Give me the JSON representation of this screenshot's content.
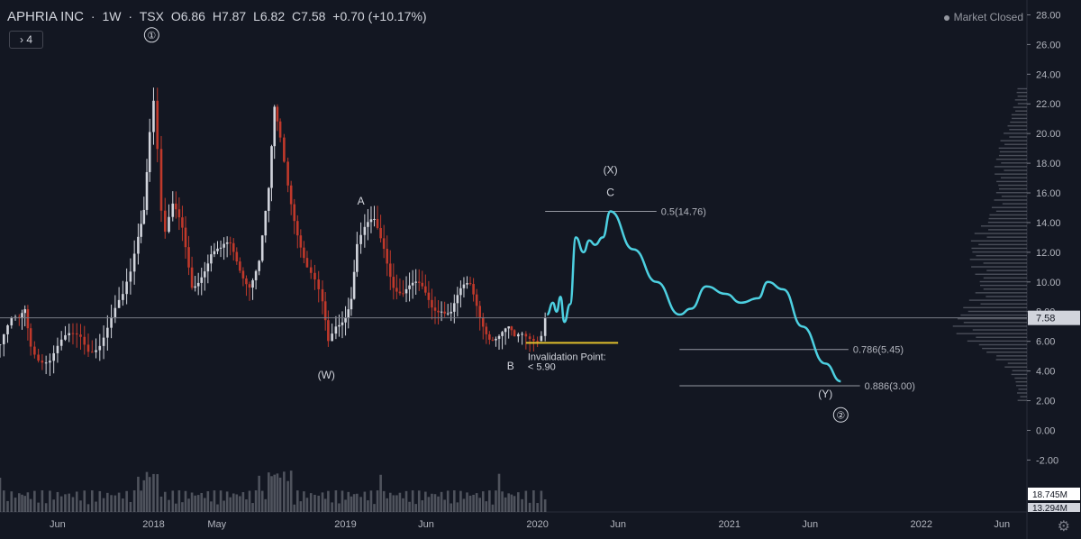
{
  "header": {
    "symbol": "APHRIA INC",
    "interval": "1W",
    "exchange": "TSX",
    "open": "O6.86",
    "high": "H7.87",
    "low": "L6.82",
    "close": "C7.58",
    "change": "+0.70 (+10.17%)",
    "indicators_button": "› 4"
  },
  "market_status": "Market Closed",
  "icons": {
    "settings": "gear-icon",
    "market_dot": "status-dot-icon"
  },
  "colors": {
    "bg": "#131722",
    "up": "#d1d4dc",
    "down": "#c0392b",
    "projection": "#4dd0e1",
    "invalidation": "#e0c02c",
    "level": "#9598a1"
  },
  "chart_data": {
    "type": "candlestick",
    "title": "APHRIA INC · 1W · TSX",
    "y_axis": {
      "ticks": [
        "28.00",
        "26.00",
        "24.00",
        "22.00",
        "20.00",
        "18.00",
        "16.00",
        "14.00",
        "12.00",
        "10.00",
        "8.00",
        "6.00",
        "4.00",
        "2.00",
        "0.00",
        "-2.00"
      ],
      "range": [
        -5.5,
        29
      ]
    },
    "x_axis": {
      "ticks": [
        {
          "label": "Jun",
          "t": 0.5
        },
        {
          "label": "2018",
          "t": 1.0
        },
        {
          "label": "May",
          "t": 1.33
        },
        {
          "label": "2019",
          "t": 2.0
        },
        {
          "label": "Jun",
          "t": 2.42
        },
        {
          "label": "2020",
          "t": 3.0
        },
        {
          "label": "Jun",
          "t": 3.42
        },
        {
          "label": "2021",
          "t": 4.0
        },
        {
          "label": "Jun",
          "t": 4.42
        },
        {
          "label": "2022",
          "t": 5.0
        },
        {
          "label": "Jun",
          "t": 5.42
        }
      ],
      "range": [
        0.2,
        5.55
      ]
    },
    "price_series": [
      {
        "t": 0.2,
        "c": 5.8
      },
      {
        "t": 0.26,
        "c": 6.7
      },
      {
        "t": 0.3,
        "c": 6.8
      },
      {
        "t": 0.33,
        "c": 8.0
      },
      {
        "t": 0.36,
        "c": 6.2
      },
      {
        "t": 0.4,
        "c": 5.6
      },
      {
        "t": 0.46,
        "c": 5.0
      },
      {
        "t": 0.52,
        "c": 5.4
      },
      {
        "t": 0.58,
        "c": 5.8
      },
      {
        "t": 0.62,
        "c": 6.2
      },
      {
        "t": 0.66,
        "c": 5.9
      },
      {
        "t": 0.72,
        "c": 6.5
      },
      {
        "t": 0.78,
        "c": 7.5
      },
      {
        "t": 0.84,
        "c": 8.3
      },
      {
        "t": 0.88,
        "c": 10.0
      },
      {
        "t": 0.92,
        "c": 13.0
      },
      {
        "t": 0.95,
        "c": 15.5
      },
      {
        "t": 0.98,
        "c": 21.0
      },
      {
        "t": 1.0,
        "c": 23.0
      },
      {
        "t": 1.02,
        "c": 19.5
      },
      {
        "t": 1.04,
        "c": 15.0
      },
      {
        "t": 1.06,
        "c": 13.2
      },
      {
        "t": 1.1,
        "c": 14.5
      },
      {
        "t": 1.15,
        "c": 13.0
      },
      {
        "t": 1.2,
        "c": 10.0
      },
      {
        "t": 1.25,
        "c": 11.2
      },
      {
        "t": 1.3,
        "c": 12.0
      },
      {
        "t": 1.35,
        "c": 11.5
      },
      {
        "t": 1.4,
        "c": 12.0
      },
      {
        "t": 1.45,
        "c": 11.2
      },
      {
        "t": 1.5,
        "c": 10.5
      },
      {
        "t": 1.55,
        "c": 11.5
      },
      {
        "t": 1.6,
        "c": 15.5
      },
      {
        "t": 1.63,
        "c": 21.0
      },
      {
        "t": 1.66,
        "c": 19.5
      },
      {
        "t": 1.7,
        "c": 17.0
      },
      {
        "t": 1.75,
        "c": 14.0
      },
      {
        "t": 1.8,
        "c": 11.0
      },
      {
        "t": 1.84,
        "c": 9.5
      },
      {
        "t": 1.88,
        "c": 7.8
      },
      {
        "t": 1.91,
        "c": 5.5
      },
      {
        "t": 1.95,
        "c": 7.2
      },
      {
        "t": 2.0,
        "c": 8.5
      },
      {
        "t": 2.03,
        "c": 9.5
      },
      {
        "t": 2.06,
        "c": 12.5
      },
      {
        "t": 2.1,
        "c": 13.0
      },
      {
        "t": 2.15,
        "c": 13.5
      },
      {
        "t": 2.2,
        "c": 12.5
      },
      {
        "t": 2.25,
        "c": 10.5
      },
      {
        "t": 2.3,
        "c": 9.5
      },
      {
        "t": 2.35,
        "c": 9.2
      },
      {
        "t": 2.4,
        "c": 9.0
      },
      {
        "t": 2.45,
        "c": 8.6
      },
      {
        "t": 2.5,
        "c": 8.9
      },
      {
        "t": 2.55,
        "c": 8.2
      },
      {
        "t": 2.6,
        "c": 8.8
      },
      {
        "t": 2.65,
        "c": 9.2
      },
      {
        "t": 2.7,
        "c": 8.0
      },
      {
        "t": 2.75,
        "c": 7.0
      },
      {
        "t": 2.8,
        "c": 6.5
      },
      {
        "t": 2.85,
        "c": 6.2
      },
      {
        "t": 2.88,
        "c": 5.5
      },
      {
        "t": 2.92,
        "c": 6.2
      },
      {
        "t": 2.96,
        "c": 6.6
      },
      {
        "t": 3.0,
        "c": 6.9
      },
      {
        "t": 3.04,
        "c": 7.58
      }
    ],
    "annotations": [
      {
        "label": "①",
        "t": 0.99,
        "v": 26.4,
        "circle": true
      },
      {
        "label": "A",
        "t": 2.08,
        "v": 15.2
      },
      {
        "label": "(W)",
        "t": 1.9,
        "v": 3.5
      },
      {
        "label": "B",
        "t": 2.86,
        "v": 4.1
      },
      {
        "label": "(X)",
        "t": 3.38,
        "v": 17.3
      },
      {
        "label": "C",
        "t": 3.38,
        "v": 15.8
      },
      {
        "label": "(Y)",
        "t": 4.5,
        "v": 2.2
      },
      {
        "label": "②",
        "t": 4.58,
        "v": 0.8,
        "circle": true
      }
    ],
    "invalidation": {
      "label": "Invalidation Point:",
      "value": "< 5.90",
      "level": 5.9,
      "t_from": 2.94,
      "t_to": 3.42
    },
    "fib_levels": [
      {
        "label": "0.5(14.76)",
        "value": 14.76,
        "t_from": 3.04,
        "t_to": 3.62
      },
      {
        "label": "0.786(5.45)",
        "value": 5.45,
        "t_from": 3.74,
        "t_to": 4.62
      },
      {
        "label": "0.886(3.00)",
        "value": 3.0,
        "t_from": 3.74,
        "t_to": 4.68
      }
    ],
    "projection": [
      {
        "t": 3.05,
        "v": 7.8
      },
      {
        "t": 3.08,
        "v": 8.6
      },
      {
        "t": 3.1,
        "v": 8.0
      },
      {
        "t": 3.12,
        "v": 9.0
      },
      {
        "t": 3.14,
        "v": 7.3
      },
      {
        "t": 3.17,
        "v": 8.5
      },
      {
        "t": 3.2,
        "v": 13.0
      },
      {
        "t": 3.24,
        "v": 12.0
      },
      {
        "t": 3.27,
        "v": 12.8
      },
      {
        "t": 3.3,
        "v": 12.5
      },
      {
        "t": 3.34,
        "v": 13.0
      },
      {
        "t": 3.38,
        "v": 14.76
      },
      {
        "t": 3.5,
        "v": 12.2
      },
      {
        "t": 3.62,
        "v": 10.0
      },
      {
        "t": 3.74,
        "v": 7.8
      },
      {
        "t": 3.8,
        "v": 8.2
      },
      {
        "t": 3.88,
        "v": 9.7
      },
      {
        "t": 3.98,
        "v": 9.2
      },
      {
        "t": 4.06,
        "v": 8.6
      },
      {
        "t": 4.15,
        "v": 8.9
      },
      {
        "t": 4.2,
        "v": 10.0
      },
      {
        "t": 4.28,
        "v": 9.5
      },
      {
        "t": 4.38,
        "v": 7.0
      },
      {
        "t": 4.5,
        "v": 4.5
      },
      {
        "t": 4.58,
        "v": 3.3
      }
    ],
    "current_price": {
      "value": 7.58,
      "label": "7.58"
    },
    "volume_labels": [
      "18.745M",
      "13.294M"
    ]
  }
}
